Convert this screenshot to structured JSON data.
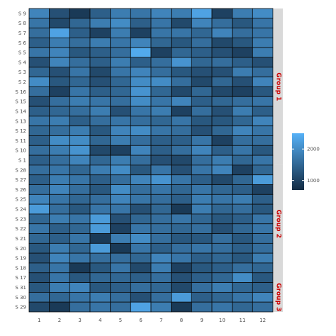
{
  "chart_data": {
    "type": "heatmap",
    "title": "",
    "xlabel": "",
    "ylabel": "",
    "x_categories": [
      "1",
      "2",
      "3",
      "4",
      "5",
      "6",
      "7",
      "8",
      "9",
      "10",
      "11",
      "12"
    ],
    "y_categories": [
      "S 9",
      "S 8",
      "S 7",
      "S 6",
      "S 5",
      "S 4",
      "S 3",
      "S 2",
      "S 16",
      "S 15",
      "S 14",
      "S 13",
      "S 12",
      "S 11",
      "S 10",
      "S 1",
      "S 28",
      "S 27",
      "S 26",
      "S 25",
      "S 24",
      "S 23",
      "S 22",
      "S 21",
      "S 20",
      "S 19",
      "S 18",
      "S 17",
      "S 31",
      "S 30",
      "S 29"
    ],
    "panels": [
      {
        "label": "Group 1",
        "rows": [
          "S 9",
          "S 8",
          "S 7",
          "S 6",
          "S 5",
          "S 4",
          "S 3",
          "S 2",
          "S 16",
          "S 15",
          "S 14",
          "S 13",
          "S 12",
          "S 11",
          "S 10",
          "S 1"
        ]
      },
      {
        "label": "Group 2",
        "rows": [
          "S 28",
          "S 27",
          "S 26",
          "S 25",
          "S 24",
          "S 23",
          "S 22",
          "S 21",
          "S 20",
          "S 19",
          "S 18",
          "S 17"
        ]
      },
      {
        "label": "Group 3",
        "rows": [
          "S 31",
          "S 30",
          "S 29"
        ]
      }
    ],
    "values": [
      [
        1900,
        1200,
        900,
        1400,
        1800,
        1700,
        1900,
        1800,
        2300,
        1000,
        1800,
        2000
      ],
      [
        1700,
        1100,
        1500,
        1800,
        2000,
        1400,
        1700,
        1100,
        1900,
        1600,
        1300,
        1700
      ],
      [
        1600,
        2300,
        1400,
        1000,
        1800,
        1000,
        1700,
        1700,
        1500,
        1900,
        1600,
        1700
      ],
      [
        1400,
        1800,
        1600,
        1800,
        1700,
        1900,
        1500,
        1300,
        1600,
        1100,
        1300,
        1800
      ],
      [
        1700,
        1900,
        1300,
        1400,
        1600,
        2400,
        1000,
        1500,
        1400,
        1200,
        1000,
        1800
      ],
      [
        1200,
        1900,
        1600,
        1400,
        1800,
        1400,
        1600,
        2100,
        1500,
        1600,
        1400,
        1200
      ],
      [
        1500,
        1200,
        1700,
        1100,
        1700,
        1900,
        1600,
        1300,
        1200,
        1200,
        1800,
        1600
      ],
      [
        2000,
        1300,
        1500,
        1200,
        1500,
        2000,
        2000,
        1600,
        1100,
        1500,
        1200,
        1900
      ],
      [
        1600,
        1000,
        1700,
        1400,
        1500,
        2100,
        1500,
        1100,
        1500,
        1100,
        1000,
        1300
      ],
      [
        1200,
        1600,
        1800,
        1700,
        1600,
        2000,
        1700,
        1900,
        1400,
        1500,
        1600,
        1700
      ],
      [
        1400,
        1500,
        1600,
        1800,
        1200,
        1700,
        1800,
        1000,
        1600,
        1200,
        1800,
        1400
      ],
      [
        1700,
        1800,
        1400,
        1600,
        1700,
        1600,
        1500,
        1700,
        1300,
        1300,
        1500,
        1900
      ],
      [
        1500,
        1600,
        1800,
        1300,
        1900,
        2000,
        1700,
        1600,
        1200,
        1500,
        1900,
        1700
      ],
      [
        1400,
        2000,
        2000,
        1500,
        1800,
        1600,
        1400,
        1400,
        1700,
        1000,
        1600,
        1600
      ],
      [
        1600,
        1800,
        2100,
        1100,
        1000,
        1900,
        1400,
        1600,
        1900,
        1400,
        1700,
        1300
      ],
      [
        1400,
        1600,
        1900,
        1500,
        1800,
        1600,
        1200,
        1100,
        1600,
        1800,
        1500,
        1700
      ],
      [
        1600,
        1700,
        1500,
        1800,
        2000,
        1300,
        1700,
        1200,
        1700,
        1900,
        1000,
        1500
      ],
      [
        1400,
        1800,
        1700,
        1400,
        1600,
        1900,
        2100,
        1700,
        1400,
        1100,
        1500,
        2200
      ],
      [
        1600,
        1900,
        1600,
        1300,
        2000,
        1600,
        1700,
        1500,
        1700,
        1500,
        1400,
        1000
      ],
      [
        1900,
        1700,
        1500,
        1600,
        1900,
        1700,
        1600,
        1400,
        1800,
        1700,
        1800,
        1400
      ],
      [
        2200,
        1600,
        1300,
        1700,
        1700,
        1200,
        1500,
        900,
        1800,
        1500,
        1600,
        1300
      ],
      [
        1500,
        1800,
        1700,
        2200,
        1200,
        1500,
        1600,
        1700,
        1500,
        1300,
        1400,
        1700
      ],
      [
        1700,
        1400,
        1500,
        2200,
        1000,
        1700,
        1600,
        1500,
        1600,
        1200,
        1500,
        1700
      ],
      [
        1500,
        1400,
        1700,
        900,
        1800,
        2000,
        1600,
        1300,
        1300,
        1600,
        1300,
        1600
      ],
      [
        1300,
        1800,
        1500,
        2200,
        900,
        1700,
        1400,
        1600,
        1700,
        1600,
        1400,
        1600
      ],
      [
        1200,
        1900,
        1700,
        1600,
        1600,
        1500,
        1900,
        1700,
        1400,
        1500,
        1300,
        1800
      ],
      [
        1400,
        1700,
        900,
        1300,
        1700,
        1100,
        1800,
        1000,
        1300,
        1400,
        1600,
        1500
      ],
      [
        1200,
        1700,
        1300,
        1500,
        1500,
        1400,
        1600,
        1200,
        1400,
        1500,
        2000,
        1300
      ],
      [
        1300,
        1800,
        1900,
        1300,
        1400,
        1600,
        1500,
        1100,
        1600,
        1800,
        1500,
        1400
      ],
      [
        1600,
        1500,
        1700,
        1800,
        1600,
        1200,
        1600,
        2200,
        1400,
        1500,
        1700,
        1900
      ],
      [
        1100,
        900,
        1600,
        1700,
        1600,
        2300,
        1800,
        900,
        1600,
        1700,
        1500,
        1600
      ]
    ],
    "scale": {
      "min": 700,
      "max": 2500,
      "low_color": "#132b43",
      "high_color": "#56b1f7"
    },
    "legend": {
      "position": "right",
      "tick_labels": [
        "2000",
        "1000"
      ],
      "tick_values": [
        2000,
        1000
      ]
    },
    "grid": false
  },
  "colors": {
    "cell_border": "#0b0b0b",
    "strip_background": "#d9d9d9",
    "strip_text": "#cc0000",
    "tick_text": "#4d4d4d"
  }
}
